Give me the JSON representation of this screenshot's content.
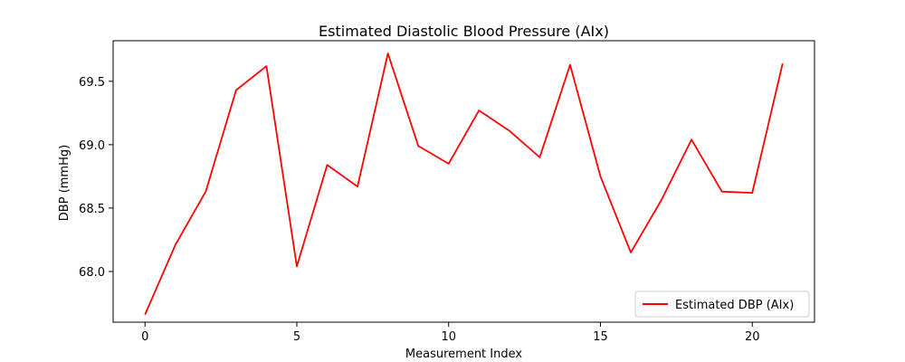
{
  "chart_data": {
    "type": "line",
    "title": "Estimated Diastolic Blood Pressure (AIx)",
    "xlabel": "Measurement Index",
    "ylabel": "DBP (mmHg)",
    "xlim": [
      -1.05,
      22.05
    ],
    "ylim": [
      67.6,
      69.82
    ],
    "xticks": [
      0,
      5,
      10,
      15,
      20
    ],
    "yticks": [
      68.0,
      68.5,
      69.0,
      69.5
    ],
    "ytick_labels": [
      "68.0",
      "68.5",
      "69.0",
      "69.5"
    ],
    "grid": false,
    "legend_position": "lower-right",
    "series": [
      {
        "name": "Estimated DBP (AIx)",
        "color": "#ff0000",
        "x": [
          0,
          1,
          2,
          3,
          4,
          5,
          6,
          7,
          8,
          9,
          10,
          11,
          12,
          13,
          14,
          15,
          16,
          17,
          18,
          19,
          20,
          21
        ],
        "values": [
          67.66,
          68.21,
          68.63,
          69.43,
          69.62,
          68.04,
          68.84,
          68.67,
          69.72,
          68.99,
          68.85,
          69.27,
          69.11,
          68.9,
          69.63,
          68.75,
          68.15,
          68.56,
          69.04,
          68.63,
          68.62,
          69.64
        ]
      }
    ]
  }
}
